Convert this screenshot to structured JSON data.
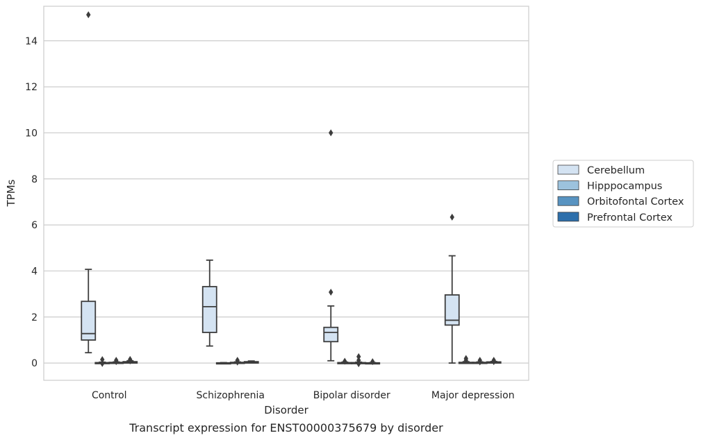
{
  "chart_data": {
    "type": "box",
    "caption": "Transcript expression for ENST00000375679 by disorder",
    "xlabel": "Disorder",
    "ylabel": "TPMs",
    "ylim": [
      -0.75,
      15.5
    ],
    "yticks": [
      0,
      2,
      4,
      6,
      8,
      10,
      12,
      14
    ],
    "grid": true,
    "legend_position": "right",
    "categories": [
      "Control",
      "Schizophrenia",
      "Bipolar disorder",
      "Major depression"
    ],
    "series": [
      {
        "name": "Cerebellum",
        "color": "#d4e3f2",
        "boxes": [
          {
            "whisker_low": 0.45,
            "q1": 1.0,
            "median": 1.28,
            "q3": 2.68,
            "whisker_high": 4.07,
            "outliers": [
              15.13
            ]
          },
          {
            "whisker_low": 0.74,
            "q1": 1.33,
            "median": 2.45,
            "q3": 3.32,
            "whisker_high": 4.47,
            "outliers": []
          },
          {
            "whisker_low": 0.1,
            "q1": 0.93,
            "median": 1.33,
            "q3": 1.55,
            "whisker_high": 2.48,
            "outliers": [
              3.08,
              10.0
            ]
          },
          {
            "whisker_low": 0.0,
            "q1": 1.65,
            "median": 1.86,
            "q3": 2.96,
            "whisker_high": 4.66,
            "outliers": [
              6.34
            ]
          }
        ]
      },
      {
        "name": "Hipppocampus",
        "color": "#9cc2dd",
        "boxes": [
          {
            "whisker_low": 0.0,
            "q1": 0.0,
            "median": 0.0,
            "q3": 0.02,
            "whisker_high": 0.04,
            "outliers": [
              0.15,
              -0.02
            ]
          },
          {
            "whisker_low": 0.0,
            "q1": 0.0,
            "median": 0.0,
            "q3": 0.01,
            "whisker_high": 0.02,
            "outliers": []
          },
          {
            "whisker_low": 0.0,
            "q1": 0.0,
            "median": 0.0,
            "q3": 0.02,
            "whisker_high": 0.04,
            "outliers": [
              0.08
            ]
          },
          {
            "whisker_low": 0.0,
            "q1": 0.0,
            "median": 0.01,
            "q3": 0.03,
            "whisker_high": 0.06,
            "outliers": [
              0.2,
              0.12
            ]
          }
        ]
      },
      {
        "name": "Orbitofontal Cortex",
        "color": "#5893c1",
        "boxes": [
          {
            "whisker_low": 0.0,
            "q1": 0.0,
            "median": 0.01,
            "q3": 0.03,
            "whisker_high": 0.05,
            "outliers": [
              0.12,
              0.06
            ]
          },
          {
            "whisker_low": 0.0,
            "q1": 0.0,
            "median": 0.01,
            "q3": 0.03,
            "whisker_high": 0.05,
            "outliers": [
              0.12,
              0.04
            ]
          },
          {
            "whisker_low": 0.0,
            "q1": 0.0,
            "median": 0.0,
            "q3": 0.02,
            "whisker_high": 0.04,
            "outliers": [
              0.28,
              0.12,
              -0.03
            ]
          },
          {
            "whisker_low": 0.0,
            "q1": 0.0,
            "median": 0.01,
            "q3": 0.03,
            "whisker_high": 0.05,
            "outliers": [
              0.12,
              0.05
            ]
          }
        ]
      },
      {
        "name": "Prefrontal Cortex",
        "color": "#2d6fab",
        "boxes": [
          {
            "whisker_low": 0.0,
            "q1": 0.0,
            "median": 0.02,
            "q3": 0.06,
            "whisker_high": 0.1,
            "outliers": [
              0.16,
              0.09
            ]
          },
          {
            "whisker_low": 0.0,
            "q1": 0.0,
            "median": 0.03,
            "q3": 0.06,
            "whisker_high": 0.09,
            "outliers": []
          },
          {
            "whisker_low": 0.0,
            "q1": 0.0,
            "median": 0.0,
            "q3": 0.01,
            "whisker_high": 0.02,
            "outliers": [
              0.06
            ]
          },
          {
            "whisker_low": 0.0,
            "q1": 0.0,
            "median": 0.02,
            "q3": 0.05,
            "whisker_high": 0.07,
            "outliers": [
              0.12,
              0.06
            ]
          }
        ]
      }
    ]
  }
}
